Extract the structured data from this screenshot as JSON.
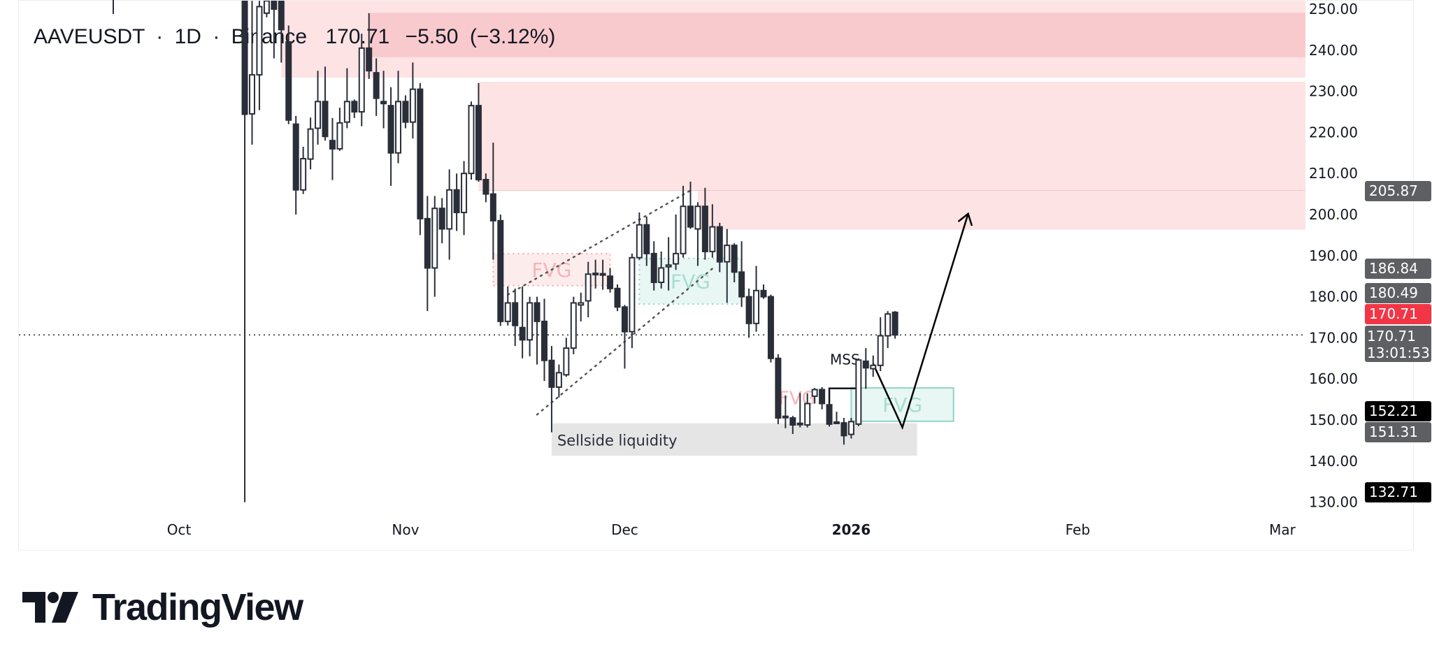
{
  "header": {
    "symbol": "AAVEUSDT",
    "interval": "1D",
    "exchange": "Binance",
    "separator": "·",
    "price": "170.71",
    "change": "−5.50",
    "change_pct": "(−3.12%)"
  },
  "logo": {
    "text": "TradingView",
    "icon": "tradingview-logo-icon"
  },
  "colors": {
    "supply_zone_light": "#fde3e4",
    "supply_zone_dark": "#f9cacd",
    "bearish_fvg": "#fdecec",
    "bullish_fvg": "#e8f7f4",
    "bullish_fvg_border": "#8fd4c6",
    "liquidity_zone": "#e5e5e5",
    "candle_body": "#2a2e39",
    "badge_grey": "#5d5f63",
    "badge_red": "#f23645",
    "badge_black": "#000000"
  },
  "chart_data": {
    "type": "candlestick",
    "title": "AAVEUSDT · 1D · Binance",
    "ylim": [
      128,
      252
    ],
    "y_ticks": [
      "250.00",
      "240.00",
      "230.00",
      "220.00",
      "210.00",
      "200.00",
      "190.00",
      "180.00",
      "170.00",
      "160.00",
      "150.00",
      "140.00",
      "130.00"
    ],
    "x_ticks": [
      {
        "label": "Oct",
        "date": "2025-10-01",
        "bold": false
      },
      {
        "label": "Nov",
        "date": "2025-11-01",
        "bold": false
      },
      {
        "label": "Dec",
        "date": "2025-12-01",
        "bold": false
      },
      {
        "label": "2026",
        "date": "2026-01-01",
        "bold": true
      },
      {
        "label": "Feb",
        "date": "2026-02-01",
        "bold": false
      },
      {
        "label": "Mar",
        "date": "2026-03-01",
        "bold": false
      }
    ],
    "candles_columns": [
      "date",
      "open",
      "high",
      "low",
      "close"
    ],
    "candles": [
      [
        "2025-10-10",
        262,
        266,
        130,
        224.4
      ],
      [
        "2025-10-11",
        224.5,
        252,
        217,
        234
      ],
      [
        "2025-10-12",
        234,
        252,
        225.4,
        250.6
      ],
      [
        "2025-10-13",
        249,
        253,
        248,
        252
      ],
      [
        "2025-10-14",
        254,
        258,
        238,
        250
      ],
      [
        "2025-10-15",
        260,
        264,
        237,
        245
      ],
      [
        "2025-10-16",
        242,
        246,
        222,
        223
      ],
      [
        "2025-10-17",
        222,
        224,
        200,
        206
      ],
      [
        "2025-10-18",
        206,
        216.5,
        205,
        213.6
      ],
      [
        "2025-10-19",
        213.5,
        223.6,
        211,
        220.8
      ],
      [
        "2025-10-20",
        221,
        235,
        217,
        227.5
      ],
      [
        "2025-10-21",
        227.5,
        236,
        218,
        219
      ],
      [
        "2025-10-22",
        218,
        223.5,
        208.4,
        216
      ],
      [
        "2025-10-23",
        216,
        226,
        215.5,
        222.3
      ],
      [
        "2025-10-24",
        222.5,
        235.6,
        221,
        227.5
      ],
      [
        "2025-10-25",
        227.5,
        228,
        223.5,
        225
      ],
      [
        "2025-10-26",
        225,
        244,
        221.5,
        240.5
      ],
      [
        "2025-10-27",
        240.5,
        249,
        233,
        235
      ],
      [
        "2025-10-28",
        234.5,
        238,
        224,
        228.3
      ],
      [
        "2025-10-29",
        227.5,
        235,
        221,
        227
      ],
      [
        "2025-10-30",
        226.5,
        231,
        207,
        215
      ],
      [
        "2025-10-31",
        215,
        235,
        212.5,
        227.5
      ],
      [
        "2025-11-01",
        227.5,
        229,
        221,
        222.5
      ],
      [
        "2025-11-02",
        222.5,
        237,
        218.5,
        230.5
      ],
      [
        "2025-11-03",
        230.5,
        232,
        195,
        199
      ],
      [
        "2025-11-04",
        199,
        204.5,
        176.5,
        187
      ],
      [
        "2025-11-05",
        187,
        204.5,
        180,
        201.5
      ],
      [
        "2025-11-06",
        201.5,
        204,
        193,
        196.5
      ],
      [
        "2025-11-07",
        196.5,
        211,
        189,
        206
      ],
      [
        "2025-11-08",
        206,
        210,
        196,
        200.5
      ],
      [
        "2025-11-09",
        200.5,
        213,
        195,
        210
      ],
      [
        "2025-11-10",
        210,
        227.5,
        208.5,
        226.5
      ],
      [
        "2025-11-11",
        226.5,
        232,
        208,
        208.5
      ],
      [
        "2025-11-12",
        208.5,
        210,
        203,
        205
      ],
      [
        "2025-11-13",
        205,
        217.5,
        189,
        198.5
      ],
      [
        "2025-11-14",
        198.5,
        200,
        172.9,
        174
      ],
      [
        "2025-11-15",
        174,
        182.5,
        173,
        178.5
      ],
      [
        "2025-11-16",
        178.5,
        182,
        168,
        173
      ],
      [
        "2025-11-17",
        172.5,
        182.5,
        165,
        169.5
      ],
      [
        "2025-11-18",
        169.5,
        180,
        165.5,
        178.5
      ],
      [
        "2025-11-19",
        178.5,
        180,
        163.5,
        174
      ],
      [
        "2025-11-20",
        174,
        179.5,
        159.5,
        164.5
      ],
      [
        "2025-11-21",
        164.5,
        168,
        147,
        158
      ],
      [
        "2025-11-22",
        158,
        163.5,
        155.5,
        161.5
      ],
      [
        "2025-11-23",
        161,
        170,
        160.5,
        167.5
      ],
      [
        "2025-11-24",
        167.5,
        180,
        166,
        178.5
      ],
      [
        "2025-11-25",
        178,
        181,
        174,
        178.5
      ],
      [
        "2025-11-26",
        179,
        188.5,
        175,
        185.5
      ],
      [
        "2025-11-27",
        185.5,
        189,
        182,
        185.7
      ],
      [
        "2025-11-28",
        185.6,
        189,
        181.7,
        185.4
      ],
      [
        "2025-11-29",
        185,
        187,
        181,
        182
      ],
      [
        "2025-11-30",
        182,
        183,
        176.5,
        177.5
      ],
      [
        "2025-12-01",
        177.5,
        178,
        162.5,
        171.5
      ],
      [
        "2025-12-02",
        171.5,
        190.5,
        167.5,
        189.5
      ],
      [
        "2025-12-03",
        189.5,
        200.5,
        189,
        197.5
      ],
      [
        "2025-12-04",
        197.5,
        199.5,
        187.5,
        190.5
      ],
      [
        "2025-12-05",
        190.5,
        193.5,
        181.5,
        183.5
      ],
      [
        "2025-12-06",
        183.5,
        191,
        182,
        187
      ],
      [
        "2025-12-07",
        187.3,
        194.5,
        181.5,
        187.7
      ],
      [
        "2025-12-08",
        188,
        200,
        186.5,
        190.5
      ],
      [
        "2025-12-09",
        190.5,
        207,
        189.5,
        202
      ],
      [
        "2025-12-10",
        202,
        208,
        196.5,
        197
      ],
      [
        "2025-12-11",
        196.5,
        203,
        187.5,
        202
      ],
      [
        "2025-12-12",
        202,
        206.5,
        189,
        191
      ],
      [
        "2025-12-13",
        191,
        202.5,
        189.5,
        197
      ],
      [
        "2025-12-14",
        197,
        198,
        186,
        188.5
      ],
      [
        "2025-12-15",
        188.5,
        196.5,
        178.5,
        192.5
      ],
      [
        "2025-12-16",
        192.5,
        193,
        183.5,
        186
      ],
      [
        "2025-12-17",
        186,
        193.5,
        177.5,
        180
      ],
      [
        "2025-12-18",
        180,
        182,
        170,
        173.5
      ],
      [
        "2025-12-19",
        173.5,
        187.5,
        171.5,
        181.5
      ],
      [
        "2025-12-20",
        181.5,
        183,
        179.5,
        180
      ],
      [
        "2025-12-21",
        180,
        180.5,
        164,
        165
      ],
      [
        "2025-12-22",
        165,
        166,
        149,
        150.5
      ],
      [
        "2025-12-23",
        150.7,
        156,
        148,
        150.9
      ],
      [
        "2025-12-24",
        150.5,
        151,
        146.6,
        148.8
      ],
      [
        "2025-12-25",
        149,
        156.6,
        148.2,
        149.2
      ],
      [
        "2025-12-26",
        148.8,
        156.5,
        148.2,
        154
      ],
      [
        "2025-12-27",
        155.8,
        157.8,
        154,
        157.4
      ],
      [
        "2025-12-28",
        157.4,
        158,
        152.6,
        154
      ],
      [
        "2025-12-29",
        153.7,
        154,
        148.4,
        149
      ],
      [
        "2025-12-30",
        149.3,
        152,
        149,
        149.5
      ],
      [
        "2025-12-31",
        149.3,
        150.5,
        144,
        146.2
      ],
      [
        "2026-01-01",
        146.5,
        150.5,
        145.5,
        149.6
      ],
      [
        "2026-01-02",
        149,
        165,
        148.5,
        164.6
      ],
      [
        "2026-01-03",
        164.3,
        167.5,
        157.6,
        162.7
      ],
      [
        "2026-01-04",
        162.5,
        165.7,
        160.5,
        163.3
      ],
      [
        "2026-01-05",
        163.3,
        175,
        161.9,
        170.5
      ],
      [
        "2026-01-06",
        170.5,
        176.5,
        167.5,
        175.8
      ],
      [
        "2026-01-07",
        176.21,
        176.5,
        169.8,
        170.71
      ]
    ],
    "last_price_line": 170.71,
    "price_labels": [
      {
        "value": "205.87",
        "style": "grey"
      },
      {
        "value": "186.84",
        "style": "grey"
      },
      {
        "value": "180.49",
        "style": "grey"
      },
      {
        "value": "170.71",
        "style": "red"
      },
      {
        "value": "170.71",
        "style": "grey",
        "countdown": "13:01:53"
      },
      {
        "value": "152.21",
        "style": "black"
      },
      {
        "value": "151.31",
        "style": "grey"
      },
      {
        "value": "132.71",
        "style": "black"
      }
    ],
    "zones": [
      {
        "name": "supply-zone-upper",
        "from": "2025-10-15",
        "top": 252,
        "bottom": 233.3,
        "style": "light",
        "extend_right": true
      },
      {
        "name": "supply-zone-upper-core",
        "from": "2025-10-27",
        "top": 249.1,
        "bottom": 238.3,
        "style": "dark",
        "extend_right": true
      },
      {
        "name": "supply-zone-mid",
        "from": "2025-11-11",
        "top": 232.3,
        "bottom": 205.87,
        "style": "light",
        "extend_right": true
      },
      {
        "name": "supply-zone-mid-lower",
        "from": "2025-12-11",
        "top": 205.87,
        "bottom": 196.3,
        "style": "light",
        "extend_right": true
      }
    ],
    "fvgs": [
      {
        "label": "FVG",
        "type": "bearish",
        "from": "2025-11-13",
        "to": "2025-11-29",
        "top": 190.5,
        "bottom": 182.7
      },
      {
        "label": "FVG",
        "type": "bullish",
        "from": "2025-12-03",
        "to": "2025-12-17",
        "top": 189.3,
        "bottom": 178.2
      },
      {
        "label": "FVG",
        "type": "bullish-solid",
        "from": "2026-01-01",
        "to": "2026-01-15",
        "top": 157.8,
        "bottom": 149.7
      }
    ],
    "faint_label": {
      "text": "FVG",
      "date": "2025-12-24",
      "price": 155.5
    },
    "liquidity": {
      "label": "Sellside liquidity",
      "from": "2025-11-21",
      "to": "2026-01-10",
      "top": 149.2,
      "bottom": 141.3
    },
    "mss": {
      "label": "MSS",
      "points": [
        [
          "2025-12-29",
          148.9
        ],
        [
          "2025-12-29",
          157.7
        ],
        [
          "2026-01-02",
          157.7
        ]
      ]
    },
    "channel": {
      "upper": [
        [
          "2025-11-15",
          180.49
        ],
        [
          "2025-12-10",
          205.87
        ]
      ],
      "lower": [
        [
          "2025-11-19",
          151.31
        ],
        [
          "2025-12-13",
          186.84
        ]
      ]
    },
    "projection_arrow": [
      [
        "2026-01-04",
        163.7
      ],
      [
        "2026-01-08",
        148.2
      ],
      [
        "2026-01-17",
        200.2
      ]
    ]
  }
}
